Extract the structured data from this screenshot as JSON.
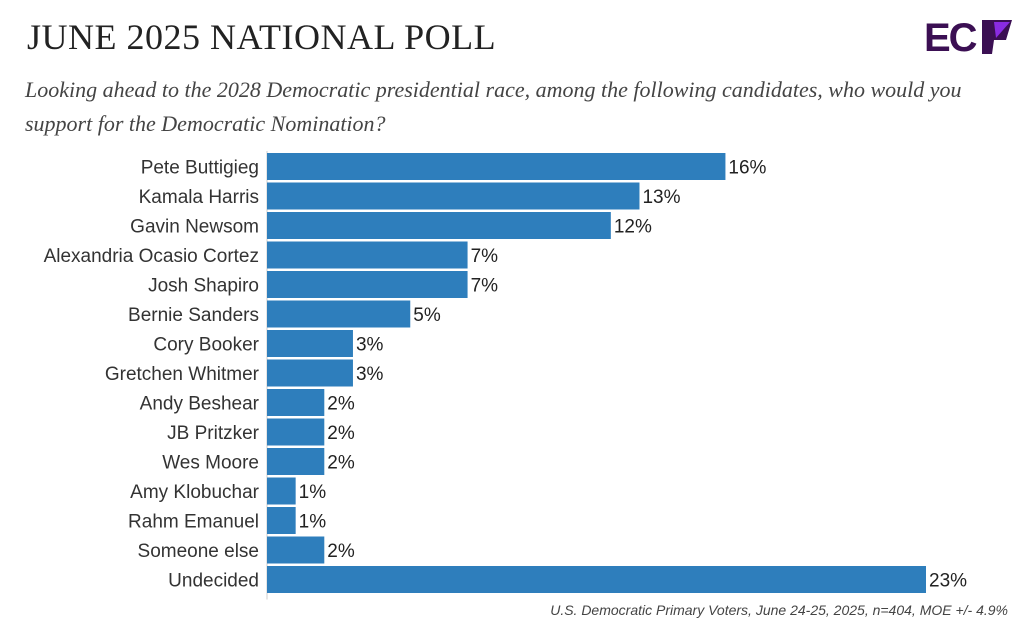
{
  "header": {
    "title": "JUNE 2025 NATIONAL POLL",
    "subtitle": "Looking ahead to the 2028 Democratic presidential race, among the following candidates, who would you support for the Democratic Nomination?",
    "logo_text": "ECP"
  },
  "footer": {
    "note": "U.S. Democratic Primary Voters, June 24-25, 2025, n=404, MOE +/- 4.9%"
  },
  "colors": {
    "bar": "#2e7ebc",
    "logo": "#3b0f53",
    "logo_accent": "#8a2be2"
  },
  "chart_data": {
    "type": "bar",
    "orientation": "horizontal",
    "categories": [
      "Pete Buttigieg",
      "Kamala Harris",
      "Gavin Newsom",
      "Alexandria Ocasio Cortez",
      "Josh Shapiro",
      "Bernie Sanders",
      "Cory Booker",
      "Gretchen Whitmer",
      "Andy Beshear",
      "JB Pritzker",
      "Wes Moore",
      "Amy Klobuchar",
      "Rahm Emanuel",
      "Someone else",
      "Undecided"
    ],
    "values": [
      16,
      13,
      12,
      7,
      7,
      5,
      3,
      3,
      2,
      2,
      2,
      1,
      1,
      2,
      23
    ],
    "value_labels": [
      "16%",
      "13%",
      "12%",
      "7%",
      "7%",
      "5%",
      "3%",
      "3%",
      "2%",
      "2%",
      "2%",
      "1%",
      "1%",
      "2%",
      "23%"
    ],
    "xlim": [
      0,
      23
    ],
    "grid": false,
    "legend": "none"
  }
}
